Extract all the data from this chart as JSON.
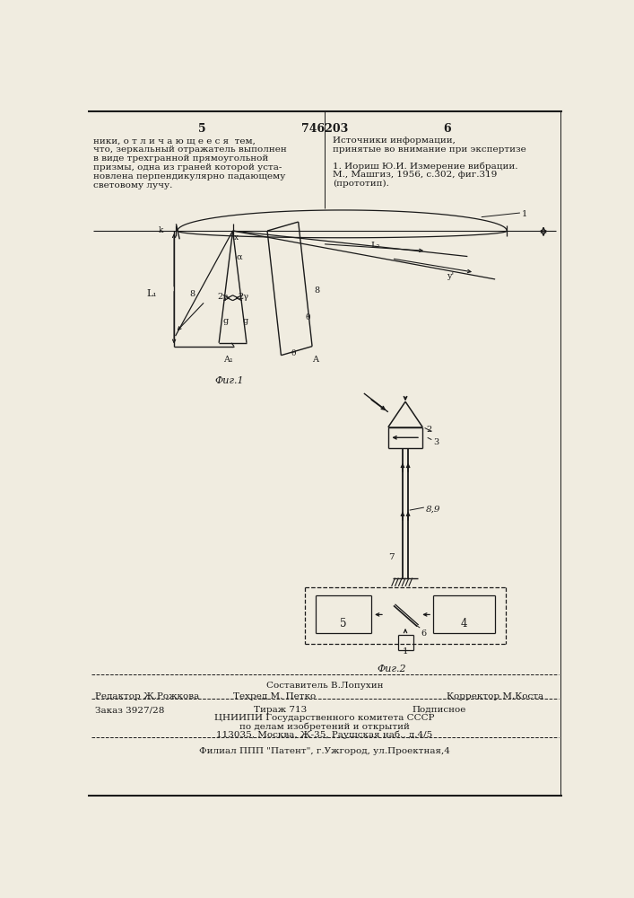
{
  "page_number_left": "5",
  "page_number_center": "746203",
  "page_number_right": "6",
  "left_text": [
    "ники, о т л и ч а ю щ е е с я  тем,",
    "что, зеркальный отражатель выполнен",
    "в виде трехгранной прямоугольной",
    "призмы, одна из граней которой уста-",
    "новлена перпендикулярно падающему",
    "световому лучу."
  ],
  "right_text_title": "Источники информации,",
  "right_text_subtitle": "принятые во внимание при экспертизе",
  "right_text_body": [
    "1. Иориш Ю.И. Измерение вибрации.",
    "М., Машгиз, 1956, с.302, фиг.319",
    "(прототип)."
  ],
  "fig1_caption": "Фиг.1",
  "fig2_caption": "Фиг.2",
  "bottom_comp": "Составитель В.Лопухин",
  "bottom_editor": "Редактор Ж.Рожкова",
  "bottom_tech": "Техред М. Петко",
  "bottom_corr": "Корректор М.Коста",
  "bottom_order": "Заказ 3927/28",
  "bottom_print": "Тираж 713",
  "bottom_sign": "Подписное",
  "bottom_org1": "ЦНИИПИ Государственного комитета СССР",
  "bottom_org2": "по делам изобретений и открытий",
  "bottom_addr": "113035, Москва, Ж-35, Раушская наб., д.4/5",
  "bottom_filial": "Филиал ППП \"Патент\", г.Ужгород, ул.Проектная,4",
  "bg_color": "#f0ece0",
  "line_color": "#1a1a1a"
}
